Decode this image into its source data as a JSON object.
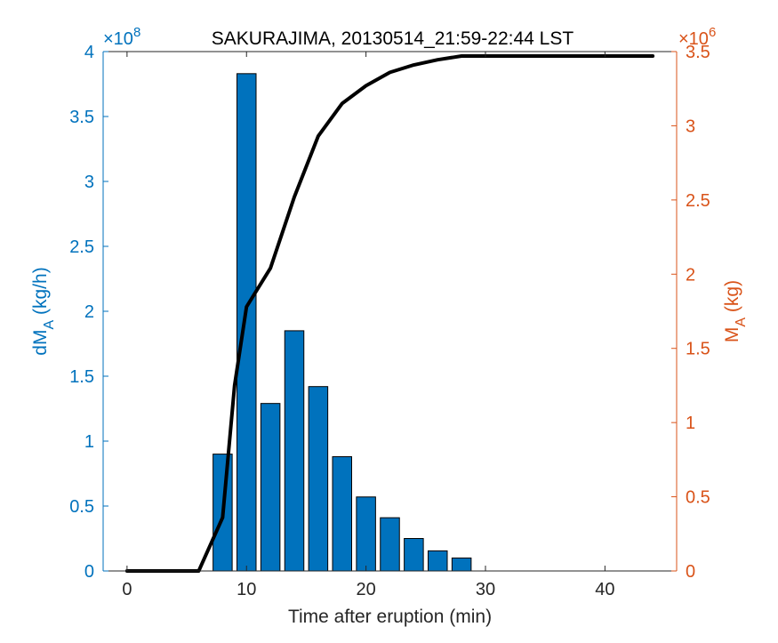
{
  "chart_data": {
    "type": "bar",
    "title": "SAKURAJIMA, 20130514_21:59-22:44 LST",
    "xlabel": "Time after eruption (min)",
    "xlim": [
      -2,
      46
    ],
    "xticks": [
      0,
      10,
      20,
      30,
      40
    ],
    "y_left": {
      "label_main": "dM",
      "label_sub": "A",
      "label_unit": " (kg/h)",
      "color": "#0072BD",
      "exponent_text": "×10",
      "exponent_power": "8",
      "ylim": [
        0,
        4
      ],
      "ticks": [
        0,
        0.5,
        1,
        1.5,
        2,
        2.5,
        3,
        3.5,
        4
      ],
      "tick_labels": [
        "0",
        "0.5",
        "1",
        "1.5",
        "2",
        "2.5",
        "3",
        "3.5",
        "4"
      ]
    },
    "y_right": {
      "label_main": "M",
      "label_sub": "A",
      "label_unit": " (kg)",
      "color": "#D95319",
      "exponent_text": "×10",
      "exponent_power": "6",
      "ylim": [
        0,
        3.5
      ],
      "ticks": [
        0,
        0.5,
        1,
        1.5,
        2,
        2.5,
        3,
        3.5
      ],
      "tick_labels": [
        "0",
        "0.5",
        "1",
        "1.5",
        "2",
        "2.5",
        "3",
        "3.5"
      ]
    },
    "bars": {
      "color": "#0072BD",
      "x": [
        8,
        10,
        12,
        14,
        16,
        18,
        20,
        22,
        24,
        26,
        28
      ],
      "values": [
        0.9,
        3.83,
        1.29,
        1.85,
        1.42,
        0.88,
        0.57,
        0.41,
        0.25,
        0.155,
        0.1
      ]
    },
    "line": {
      "color": "#000000",
      "x": [
        0,
        6,
        8,
        9,
        10,
        12,
        14,
        16,
        18,
        20,
        22,
        24,
        26,
        28,
        44
      ],
      "values": [
        0,
        0,
        0.36,
        1.25,
        1.78,
        2.04,
        2.52,
        2.93,
        3.15,
        3.27,
        3.36,
        3.41,
        3.445,
        3.47,
        3.47
      ]
    }
  }
}
